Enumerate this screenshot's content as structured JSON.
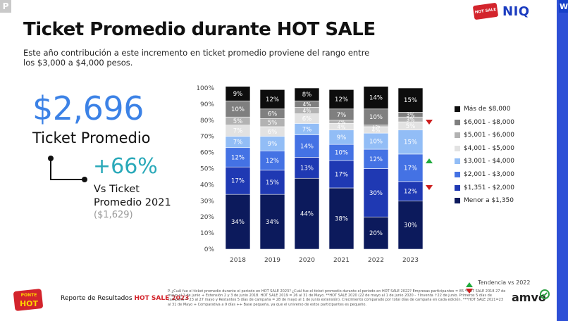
{
  "corner_tag_left": "P",
  "corner_tag_right": "W",
  "brand": {
    "niq": "NIQ",
    "hotsale_badge": "HOT SALE",
    "amvo": "amvo"
  },
  "title": "Ticket Promedio durante HOT SALE",
  "subtitle": "Este año contribución a este incremento en ticket promedio proviene del rango entre los $3,000 a $4,000 pesos.",
  "kpi": {
    "value": "$2,696",
    "label": "Ticket Promedio",
    "growth": "+66%",
    "growth_label": "Vs Ticket Promedio 2021",
    "previous": "($1,629)"
  },
  "chart_data": {
    "type": "bar",
    "stacked": true,
    "categories": [
      "2018",
      "2019",
      "2020",
      "2021",
      "2022",
      "2023"
    ],
    "ylim": [
      0,
      100
    ],
    "yticks": [
      "0%",
      "10%",
      "20%",
      "30%",
      "40%",
      "50%",
      "60%",
      "70%",
      "80%",
      "90%",
      "100%"
    ],
    "series": [
      {
        "name": "Menor a $1,350",
        "color": "#0c1a5c",
        "values": [
          34,
          34,
          44,
          38,
          20,
          30
        ]
      },
      {
        "name": "$1,351 - $2,000",
        "color": "#1f39b3",
        "values": [
          17,
          15,
          13,
          17,
          30,
          12
        ]
      },
      {
        "name": "$2,001 - $3,000",
        "color": "#4472e4",
        "values": [
          12,
          12,
          14,
          10,
          12,
          17
        ]
      },
      {
        "name": "$3,001 - $4,000",
        "color": "#92bdf6",
        "values": [
          7,
          9,
          7,
          9,
          10,
          15
        ]
      },
      {
        "name": "$4,001 - $5,000",
        "color": "#e2e2e2",
        "values": [
          7,
          6,
          6,
          4,
          4,
          5
        ]
      },
      {
        "name": "$5,001 - $6,000",
        "color": "#b2b2b2",
        "values": [
          5,
          5,
          4,
          2,
          1,
          3
        ]
      },
      {
        "name": "$6,001 - $8,000",
        "color": "#7f7f7f",
        "values": [
          10,
          6,
          4,
          7,
          10,
          3
        ]
      },
      {
        "name": "Más de $8,000",
        "color": "#0d0d0d",
        "values": [
          9,
          12,
          8,
          12,
          14,
          15
        ]
      }
    ],
    "legend_position": "right",
    "trend_markers": [
      {
        "series": "$6,001 - $8,000",
        "direction": "down",
        "color": "#cc1d1d"
      },
      {
        "series": "$3,001 - $4,000",
        "direction": "up",
        "color": "#1faa3c"
      },
      {
        "series": "$1,351 - $2,000",
        "direction": "down",
        "color": "#cc1d1d"
      }
    ]
  },
  "legend_order": [
    "Más de $8,000",
    "$6,001 - $8,000",
    "$5,001 - $6,000",
    "$4,001 - $5,000",
    "$3,001 - $4,000",
    "$2,001 - $3,000",
    "$1,351 - $2,000",
    "Menor a $1,350"
  ],
  "trend_legend": {
    "label": "Tendencia vs 2022"
  },
  "footer": {
    "report_prefix": "Reporte de Resultados ",
    "report_highlight": "HOT SALE 2023",
    "footnote": "P. ¿Cuál fue el ticket promedio durante el periodo en HOT SALE 2023? ¿Cuál fue el ticket promedio durante el periodo en HOT SALE 2022? Empresas participantes = 85 *HOT SALE 2018 27 de mayo al 1 de junio + Extensión 2 y 3 de junio 2018. HOT SALE 2019 = 26 al 31 de Mayo. **HOT SALE 2020 (22 de mayo al 1 de junio 2020 - ↑Inventa ↑22 de junio. Primeros 5 días de campaña = 23 al 27 mayo y Restantes 5 días de campaña = 28 de mayo al 1 de junio extensión). Crecimiento comparado por total días de campaña en cada edición. ***HOT SALE 2021=23 al 31 de Mayo + Comparativa a 9 días ++ Base pequeña, ya que el universo de estos participantes es pequeño."
  },
  "badge_logo": {
    "label": "PONTE HOT"
  }
}
